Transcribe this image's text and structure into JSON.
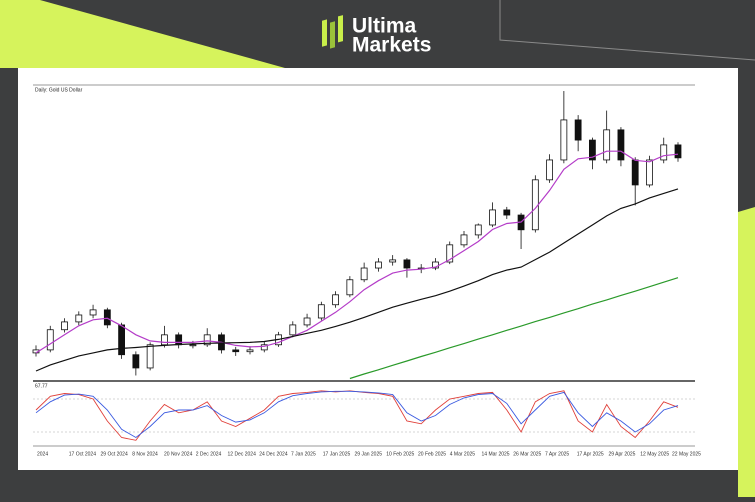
{
  "brand": {
    "line1": "Ultima",
    "line2": "Markets"
  },
  "chart_data": [
    {
      "type": "candlestick",
      "title": "Daily: Gold US Dollar",
      "x_labels": [
        "2024",
        "17 Oct 2024",
        "29 Oct 2024",
        "8 Nov 2024",
        "20 Nov 2024",
        "2 Dec 2024",
        "12 Dec 2024",
        "24 Dec 2024",
        "7 Jan 2025",
        "17 Jan 2025",
        "29 Jan 2025",
        "10 Feb 2025",
        "20 Feb 2025",
        "4 Mar 2025",
        "14 Mar 2025",
        "26 Mar 2025",
        "7 Apr 2025",
        "17 Apr 2025",
        "29 Apr 2025",
        "12 May 2025",
        "22 May 2025"
      ],
      "open": [
        2630,
        2640,
        2707,
        2733,
        2756,
        2773,
        2723,
        2624,
        2580,
        2657,
        2690,
        2657,
        2657,
        2690,
        2640,
        2634,
        2640,
        2657,
        2690,
        2723,
        2746,
        2790,
        2823,
        2873,
        2912,
        2932,
        2939,
        2912,
        2912,
        2932,
        2989,
        3022,
        3055,
        3105,
        3088,
        3039,
        3205,
        3271,
        3404,
        3337,
        3271,
        3371,
        3271,
        3188,
        3271,
        3321
      ],
      "high": [
        2655,
        2720,
        2745,
        2768,
        2790,
        2780,
        2730,
        2635,
        2665,
        2720,
        2698,
        2670,
        2712,
        2698,
        2650,
        2652,
        2668,
        2700,
        2735,
        2760,
        2800,
        2835,
        2885,
        2930,
        2945,
        2955,
        2945,
        2925,
        2945,
        3000,
        3035,
        3060,
        3130,
        3115,
        3095,
        3220,
        3290,
        3500,
        3420,
        3345,
        3435,
        3380,
        3280,
        3285,
        3345,
        3330
      ],
      "low": [
        2618,
        2632,
        2698,
        2722,
        2745,
        2712,
        2610,
        2555,
        2572,
        2648,
        2645,
        2645,
        2650,
        2628,
        2620,
        2625,
        2632,
        2650,
        2682,
        2715,
        2738,
        2780,
        2815,
        2865,
        2900,
        2920,
        2880,
        2895,
        2905,
        2925,
        2980,
        3010,
        3048,
        3075,
        2975,
        3030,
        3195,
        3260,
        3300,
        3240,
        3260,
        3250,
        3120,
        3180,
        3260,
        3265
      ],
      "close": [
        2640,
        2707,
        2733,
        2756,
        2773,
        2723,
        2624,
        2580,
        2657,
        2690,
        2657,
        2657,
        2690,
        2640,
        2634,
        2640,
        2657,
        2690,
        2723,
        2746,
        2790,
        2823,
        2873,
        2912,
        2932,
        2939,
        2912,
        2912,
        2932,
        2989,
        3022,
        3055,
        3105,
        3088,
        3039,
        3205,
        3271,
        3404,
        3337,
        3271,
        3371,
        3271,
        3188,
        3271,
        3321,
        3278
      ],
      "series": [
        {
          "color": "#b43cc8",
          "values": [
            2630,
            2660,
            2690,
            2720,
            2740,
            2745,
            2720,
            2690,
            2670,
            2665,
            2665,
            2665,
            2670,
            2665,
            2655,
            2650,
            2652,
            2665,
            2685,
            2705,
            2735,
            2765,
            2800,
            2840,
            2870,
            2895,
            2905,
            2908,
            2915,
            2940,
            2970,
            3000,
            3040,
            3060,
            3065,
            3110,
            3170,
            3240,
            3275,
            3280,
            3300,
            3300,
            3270,
            3265,
            3285,
            3290
          ]
        },
        {
          "color": "#111111",
          "values": [
            2570,
            2590,
            2605,
            2620,
            2630,
            2640,
            2645,
            2648,
            2652,
            2655,
            2658,
            2660,
            2662,
            2663,
            2664,
            2665,
            2668,
            2675,
            2685,
            2695,
            2705,
            2718,
            2732,
            2748,
            2765,
            2782,
            2795,
            2808,
            2820,
            2835,
            2852,
            2870,
            2890,
            2905,
            2915,
            2940,
            2965,
            2995,
            3025,
            3055,
            3085,
            3110,
            3125,
            3145,
            3160,
            3175
          ]
        },
        {
          "color": "#2a9a2a",
          "values": [
            null,
            null,
            null,
            null,
            null,
            null,
            null,
            null,
            null,
            null,
            null,
            null,
            null,
            null,
            null,
            null,
            null,
            null,
            null,
            null,
            null,
            null,
            2545,
            2560,
            2574,
            2589,
            2603,
            2618,
            2632,
            2647,
            2661,
            2676,
            2690,
            2705,
            2719,
            2734,
            2748,
            2763,
            2777,
            2792,
            2806,
            2821,
            2835,
            2850,
            2865,
            2880
          ]
        }
      ],
      "ylim": [
        2540,
        3520
      ]
    },
    {
      "type": "line",
      "title": "67.77",
      "series": [
        {
          "color": "#e0403a",
          "values": [
            60,
            85,
            90,
            88,
            80,
            40,
            10,
            5,
            40,
            70,
            55,
            60,
            75,
            40,
            30,
            45,
            60,
            85,
            90,
            92,
            95,
            93,
            95,
            92,
            90,
            85,
            40,
            35,
            60,
            80,
            85,
            90,
            92,
            60,
            20,
            75,
            90,
            95,
            40,
            20,
            70,
            30,
            10,
            40,
            75,
            65
          ]
        },
        {
          "color": "#3a5ae0",
          "values": [
            55,
            75,
            87,
            89,
            85,
            60,
            25,
            10,
            30,
            55,
            60,
            60,
            68,
            50,
            38,
            42,
            55,
            75,
            86,
            90,
            93,
            94,
            94,
            93,
            91,
            88,
            55,
            40,
            50,
            70,
            82,
            88,
            90,
            72,
            35,
            60,
            85,
            92,
            55,
            30,
            55,
            40,
            20,
            35,
            60,
            68
          ]
        }
      ],
      "levels": [
        20,
        80
      ],
      "ylim": [
        0,
        100
      ]
    }
  ]
}
